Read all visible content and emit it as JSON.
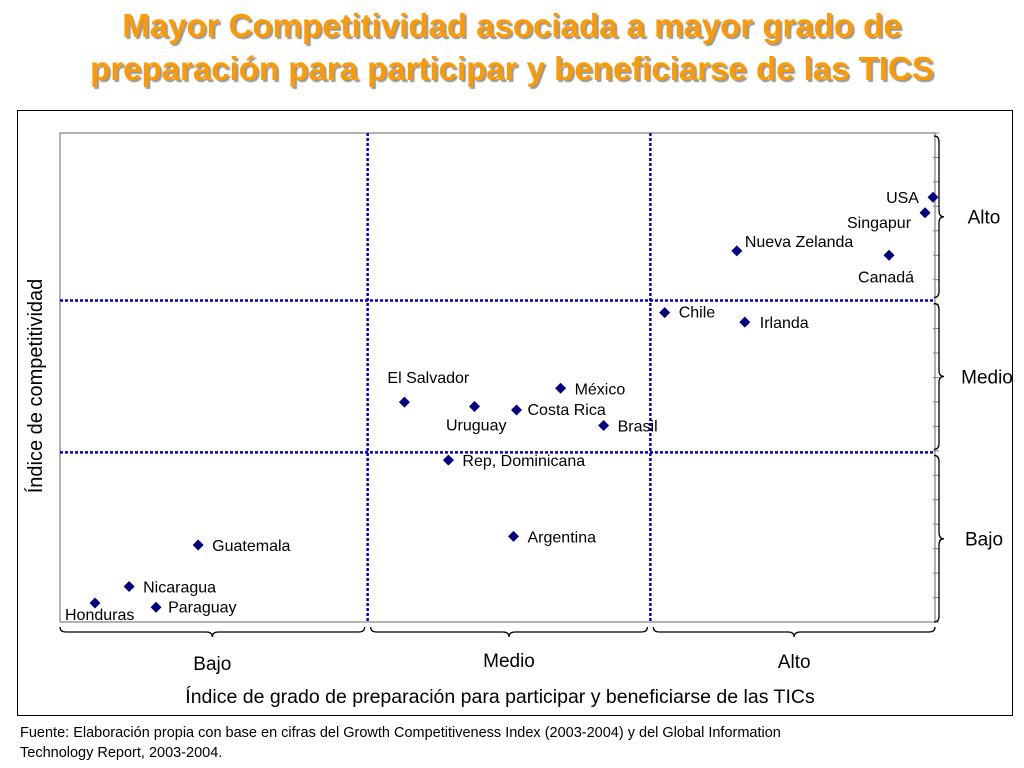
{
  "title": {
    "line1": "Mayor Competitividad asociada a mayor grado de",
    "line2": "preparación para participar y beneficiarse de las TICS"
  },
  "source": {
    "line1": "Fuente: Elaboración propia con base en cifras del Growth Competitiveness Index (2003-2004) y del Global Information",
    "line2": "Technology Report, 2003-2004."
  },
  "colors": {
    "title": "#ff9900",
    "title_shadow": "#9a9a9a",
    "marker": "#000080",
    "divider": "#0000cc",
    "axis": "#808080"
  },
  "chart_data": {
    "type": "scatter",
    "title": "",
    "xlabel": "Índice de grado de preparación para participar y beneficiarse de las TICs",
    "ylabel": "Índice de competitividad",
    "xlim": [
      0,
      1
    ],
    "ylim": [
      0,
      1
    ],
    "grid": false,
    "x_dividers": [
      0.3516,
      0.6747
    ],
    "y_dividers": [
      0.3468,
      0.6575
    ],
    "x_groups": [
      "Bajo",
      "Medio",
      "Alto"
    ],
    "y_groups": [
      "Bajo",
      "Medio",
      "Alto"
    ],
    "points": [
      {
        "label": "USA",
        "x": 0.9977,
        "y": 0.8687
      },
      {
        "label": "Singapur",
        "x": 0.9886,
        "y": 0.8368
      },
      {
        "label": "Nueva Zelanda",
        "x": 0.7735,
        "y": 0.7589
      },
      {
        "label": "Canadá",
        "x": 0.9475,
        "y": 0.75
      },
      {
        "label": "Chile",
        "x": 0.6911,
        "y": 0.6327
      },
      {
        "label": "Irlanda",
        "x": 0.7826,
        "y": 0.6132
      },
      {
        "label": "El Salvador",
        "x": 0.3936,
        "y": 0.4496
      },
      {
        "label": "México",
        "x": 0.5721,
        "y": 0.4779
      },
      {
        "label": "Uruguay",
        "x": 0.4737,
        "y": 0.4407
      },
      {
        "label": "Costa Rica",
        "x": 0.5217,
        "y": 0.4336
      },
      {
        "label": "Brasil",
        "x": 0.6213,
        "y": 0.4018
      },
      {
        "label": "Rep, Dominicana",
        "x": 0.4439,
        "y": 0.331
      },
      {
        "label": "Argentina",
        "x": 0.5183,
        "y": 0.1752
      },
      {
        "label": "Guatemala",
        "x": 0.1579,
        "y": 0.1575
      },
      {
        "label": "Nicaragua",
        "x": 0.079,
        "y": 0.0726
      },
      {
        "label": "Paraguay",
        "x": 0.1098,
        "y": 0.0301
      },
      {
        "label": "Honduras",
        "x": 0.04,
        "y": 0.0389
      }
    ]
  }
}
